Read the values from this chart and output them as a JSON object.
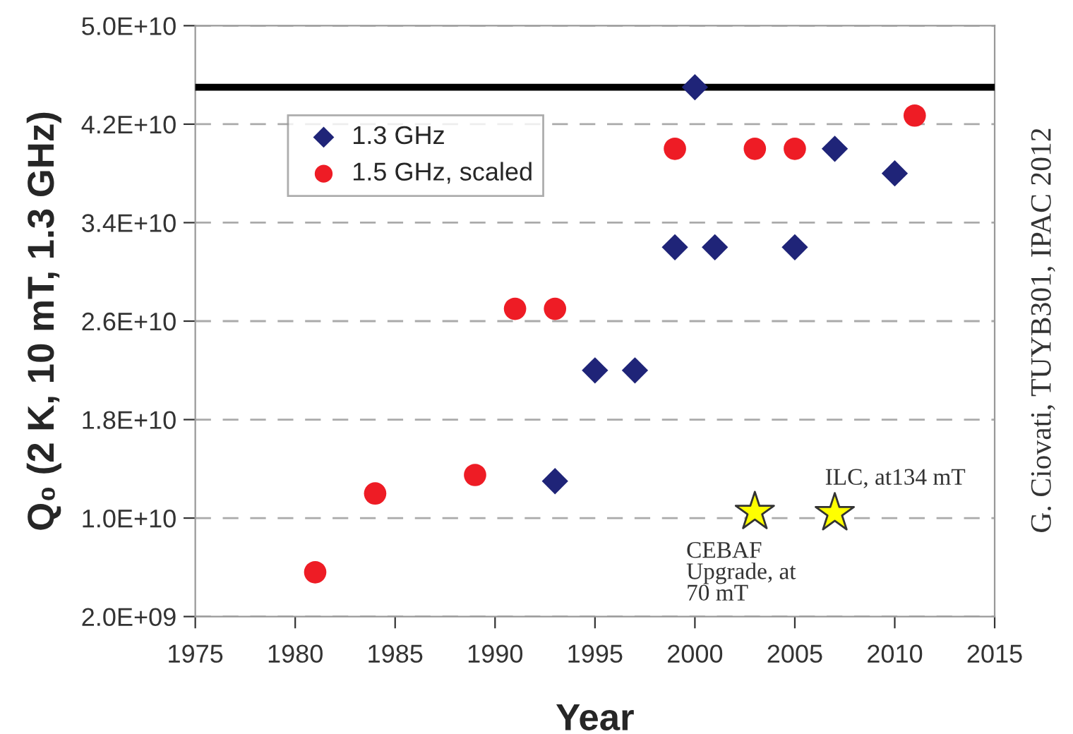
{
  "chart_data": {
    "type": "scatter",
    "xlabel": "Year",
    "ylabel": "Q₀ (2 K, 10 mT, 1.3 GHz)",
    "xlim": [
      1975,
      2015
    ],
    "xticks": [
      1975,
      1980,
      1985,
      1990,
      1995,
      2000,
      2005,
      2010,
      2015
    ],
    "ylim": [
      2000000000,
      50000000000
    ],
    "yticks": [
      {
        "value": 2000000000,
        "label": "2.0E+09"
      },
      {
        "value": 10000000000,
        "label": "1.0E+10"
      },
      {
        "value": 18000000000,
        "label": "1.8E+10"
      },
      {
        "value": 26000000000,
        "label": "2.6E+10"
      },
      {
        "value": 34000000000,
        "label": "3.4E+10"
      },
      {
        "value": 42000000000,
        "label": "4.2E+10"
      },
      {
        "value": 50000000000,
        "label": "5.0E+10"
      }
    ],
    "grid": "y",
    "legend": "top left",
    "series": [
      {
        "name": "1.3 GHz",
        "color": "#1f2478",
        "marker": "diamond",
        "x": [
          1993,
          1995,
          1997,
          1999,
          2000,
          2001,
          2005,
          2007,
          2010
        ],
        "values": [
          13000000000,
          22000000000,
          22000000000,
          32000000000,
          45000000000,
          32000000000,
          32000000000,
          40000000000,
          38000000000
        ]
      },
      {
        "name": "1.5 GHz, scaled",
        "color": "#ee1c25",
        "marker": "circle",
        "x": [
          1981,
          1984,
          1989,
          1991,
          1993,
          1999,
          2003,
          2005,
          2011
        ],
        "values": [
          5600000000,
          12000000000,
          13500000000,
          27000000000,
          27000000000,
          40000000000,
          40000000000,
          40000000000,
          42700000000
        ]
      },
      {
        "color": "#ffff00",
        "marker": "star",
        "x": [
          2003,
          2007
        ],
        "values": [
          10500000000,
          10400000000
        ]
      }
    ],
    "ref_lines": [
      {
        "axis": "y",
        "value": 45000000000,
        "color": "#000000",
        "line_style": "solid"
      }
    ],
    "annotations": [
      {
        "text": "CEBAF\nUpgrade, at\n70 mT",
        "x": 2003,
        "y": 10500000000
      },
      {
        "text": "ILC, at134 mT",
        "x": 2007,
        "y": 10400000000
      },
      "G. Ciovati, TUYB301, IPAC 2012"
    ]
  }
}
